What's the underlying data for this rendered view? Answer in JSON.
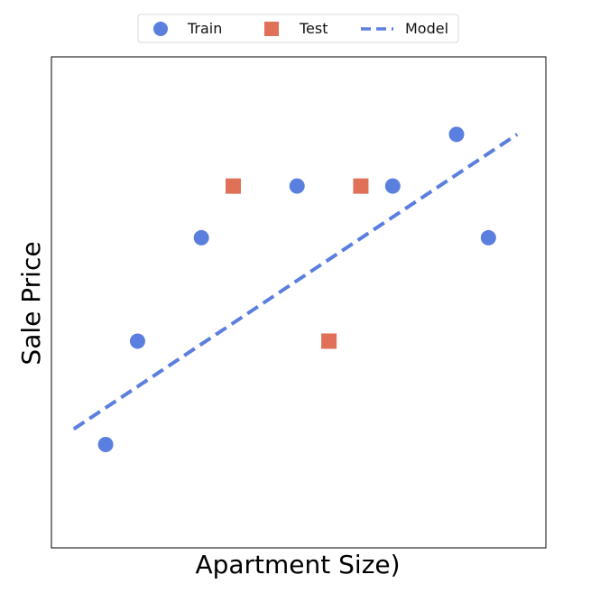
{
  "chart_data": {
    "type": "scatter",
    "xlabel": "Apartment Size)",
    "ylabel": "Sale Price",
    "xlim": [
      0,
      15.5
    ],
    "ylim": [
      0,
      9.5
    ],
    "grid": false,
    "legend_position": "top-center",
    "series": [
      {
        "name": "Train",
        "marker": "circle",
        "color": "#5b7fde",
        "x": [
          1.7,
          2.7,
          4.7,
          7.7,
          10.7,
          12.7,
          13.7
        ],
        "y": [
          2.0,
          4.0,
          6.0,
          7.0,
          7.0,
          8.0,
          6.0
        ]
      },
      {
        "name": "Test",
        "marker": "square",
        "color": "#e07058",
        "x": [
          5.7,
          8.7,
          9.7
        ],
        "y": [
          7.0,
          4.0,
          7.0
        ]
      },
      {
        "name": "Model",
        "type": "line",
        "style": "dashed",
        "color": "#5b7fde",
        "x": [
          0.7,
          14.6
        ],
        "y": [
          2.3,
          8.0
        ]
      }
    ]
  }
}
